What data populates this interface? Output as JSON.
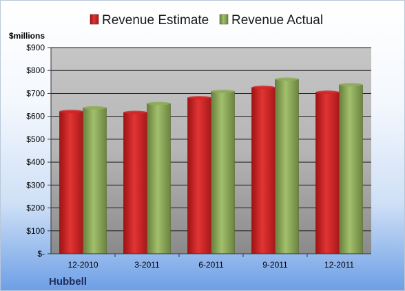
{
  "chart_data": {
    "type": "bar",
    "categories": [
      "12-2010",
      "3-2011",
      "6-2011",
      "9-2011",
      "12-2011"
    ],
    "series": [
      {
        "name": "Revenue Estimate",
        "values": [
          621,
          617,
          681,
          726,
          705
        ],
        "color": "#d42424"
      },
      {
        "name": "Revenue Actual",
        "values": [
          637,
          656,
          709,
          762,
          738
        ],
        "color": "#8fae5a"
      }
    ],
    "ylabel": "$millions",
    "ylim": [
      0,
      900
    ],
    "yticks": [
      0,
      100,
      200,
      300,
      400,
      500,
      600,
      700,
      800,
      900
    ],
    "ytick_labels": [
      "$-",
      "$100",
      "$200",
      "$300",
      "$400",
      "$500",
      "$600",
      "$700",
      "$800",
      "$900"
    ],
    "grid": true,
    "legend_position": "top"
  },
  "company": "Hubbell"
}
